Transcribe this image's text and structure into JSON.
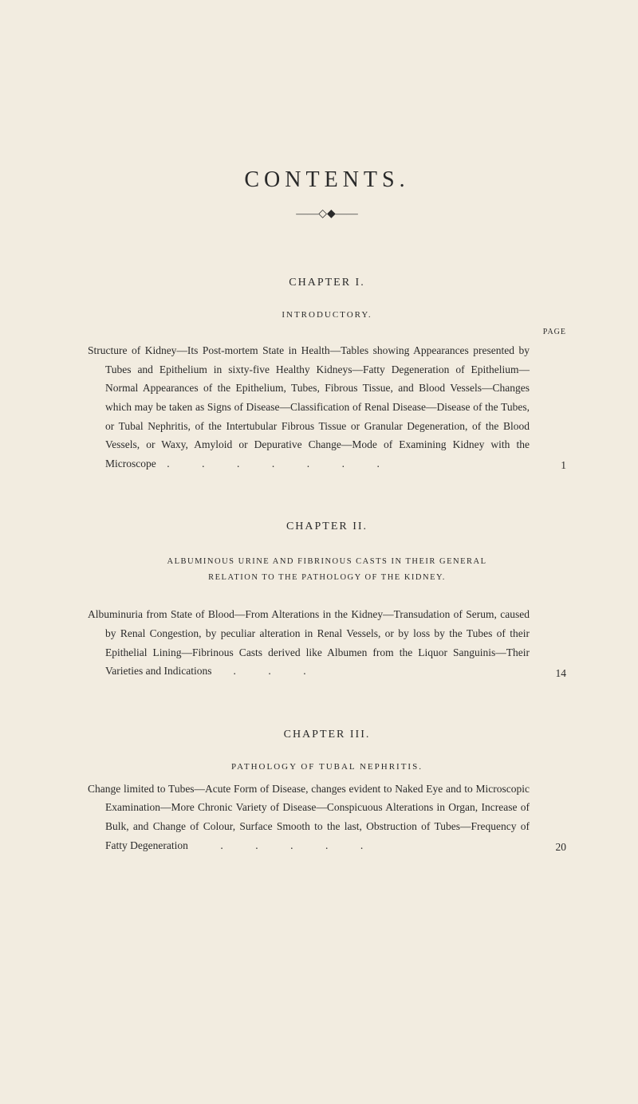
{
  "title": "CONTENTS.",
  "ornament": "——◇◆——",
  "page_label": "PAGE",
  "chapters": [
    {
      "heading": "CHAPTER I.",
      "subheading": "INTRODUCTORY.",
      "entry_text": "Structure of Kidney—Its Post-mortem State in Health—Tables showing Appearances presented by Tubes and Epithelium in sixty-five Healthy Kidneys—Fatty Degeneration of Epithelium—Normal Appearances of the Epithelium, Tubes, Fibrous Tissue, and Blood Vessels—Changes which may be taken as Signs of Disease—Classification of Renal Disease—Disease of the Tubes, or Tubal Nephritis, of the Intertubular Fibrous Tissue or Granular Degeneration, of the Blood Vessels, or Waxy, Amyloid or Depurative Change—Mode of Examining Kidney with the Microscope .   .   .   .   .   .   .",
      "entry_page": "1"
    },
    {
      "heading": "CHAPTER II.",
      "subheading_multi": "ALBUMINOUS URINE AND FIBRINOUS CASTS IN THEIR GENERAL\nRELATION TO THE PATHOLOGY OF THE KIDNEY.",
      "entry_text": "Albuminuria from State of Blood—From Alterations in the Kidney—Transudation of Serum, caused by Renal Congestion, by peculiar alteration in Renal Vessels, or by loss by the Tubes of their Epithelial Lining—Fibrinous Casts derived like Albumen from the Liquor Sanguinis—Their Varieties and Indications  .   .   .",
      "entry_page": "14"
    },
    {
      "heading": "CHAPTER III.",
      "subheading": "PATHOLOGY OF TUBAL NEPHRITIS.",
      "entry_text": "Change limited to Tubes—Acute Form of Disease, changes evident to Naked Eye and to Microscopic Examination—More Chronic Variety of Disease—Conspicuous Alterations in Organ, Increase of Bulk, and Change of Colour, Surface Smooth to the last, Obstruction of Tubes—Frequency of Fatty Degeneration   .   .   .   .   .",
      "entry_page": "20"
    }
  ]
}
